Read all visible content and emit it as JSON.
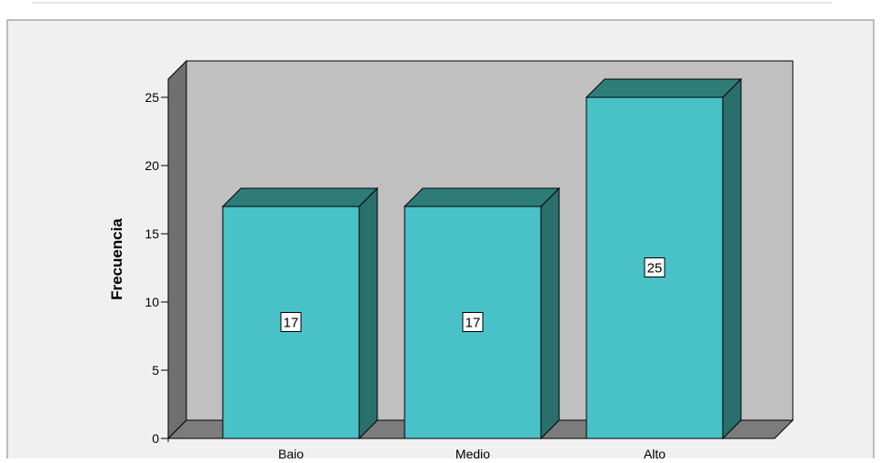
{
  "chart_data": {
    "type": "bar",
    "categories": [
      "Bajo",
      "Medio",
      "Alto"
    ],
    "values": [
      17,
      17,
      25
    ],
    "data_labels": [
      "17",
      "17",
      "25"
    ],
    "ylabel": "Frecuencia",
    "xlabel": "",
    "ylim": [
      0,
      25
    ],
    "yticks": [
      "0",
      "5",
      "10",
      "15",
      "20",
      "25"
    ],
    "grid": false,
    "style": "3d",
    "colors": {
      "bar_front": "#48c1c7",
      "bar_top": "#2e7c78",
      "bar_side": "#2a6f6c",
      "back_wall": "#c0c0c0",
      "left_wall": "#6f6f6f",
      "floor": "#7c7c7c",
      "outer_bg": "#f0f0f0"
    }
  }
}
